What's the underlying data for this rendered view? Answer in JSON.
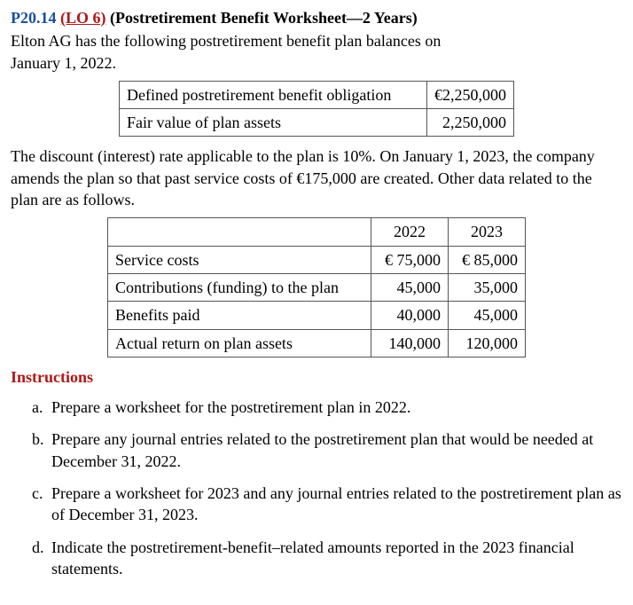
{
  "heading": {
    "problem_number": "P20.14",
    "lo_label": "(LO 6)",
    "title": "(Postretirement Benefit Worksheet—2 Years)"
  },
  "intro_line1": "Elton AG has the following postretirement benefit plan balances on",
  "intro_line2": "January 1, 2022.",
  "table1": {
    "rows": [
      {
        "label": "Defined postretirement benefit obligation",
        "value": "€2,250,000"
      },
      {
        "label": "Fair value of plan assets",
        "value": "2,250,000"
      }
    ]
  },
  "mid_para": "The discount (interest) rate applicable to the plan is 10%. On January 1, 2023, the company amends the plan so that past service costs of €175,000 are created. Other data related to the plan are as follows.",
  "table2": {
    "col_headers": [
      "2022",
      "2023"
    ],
    "rows": [
      {
        "label": "Service costs",
        "c1": "€ 75,000",
        "c2": "€ 85,000"
      },
      {
        "label": "Contributions (funding) to the plan",
        "c1": "45,000",
        "c2": "35,000"
      },
      {
        "label": "Benefits paid",
        "c1": "40,000",
        "c2": "45,000"
      },
      {
        "label": "Actual return on plan assets",
        "c1": "140,000",
        "c2": "120,000"
      }
    ]
  },
  "instructions_heading": "Instructions",
  "instructions": [
    {
      "marker": "a.",
      "text": "Prepare a worksheet for the postretirement plan in 2022."
    },
    {
      "marker": "b.",
      "text": "Prepare any journal entries related to the postretirement plan that would be needed at December 31, 2022."
    },
    {
      "marker": "c.",
      "text": "Prepare a worksheet for 2023 and any journal entries related to the postretirement plan as of December 31, 2023."
    },
    {
      "marker": "d.",
      "text": "Indicate the postretirement-benefit–related amounts reported in the 2023 financial statements."
    }
  ]
}
